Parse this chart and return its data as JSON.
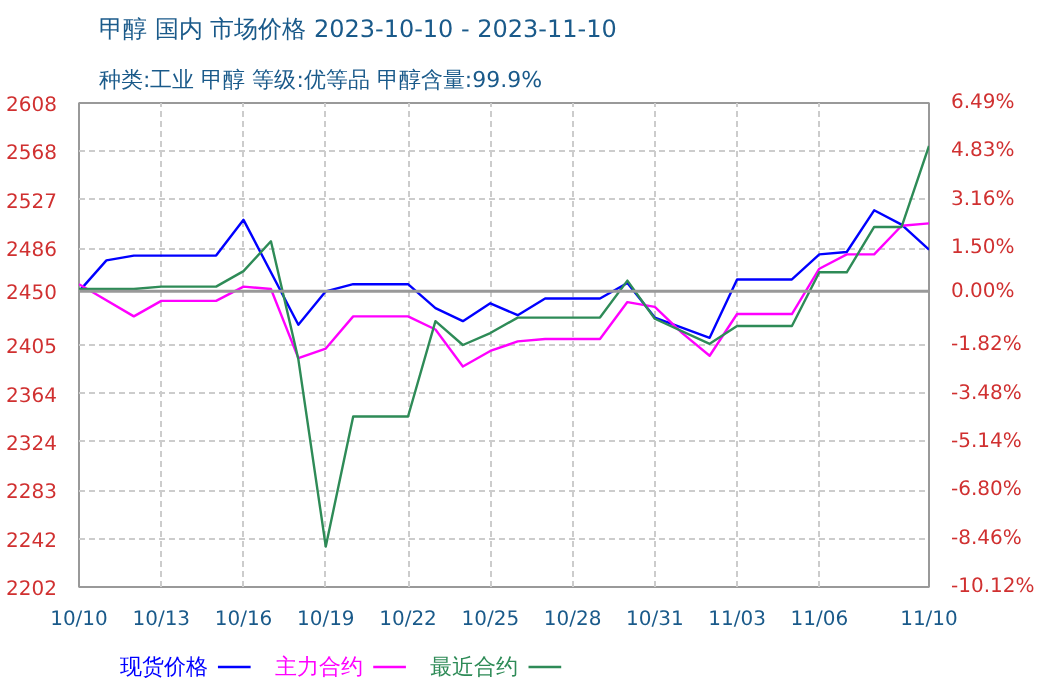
{
  "chart_data": {
    "type": "line",
    "title": "甲醇 国内 市场价格 2023-10-10 - 2023-11-10",
    "subtitle": "种类:工业 甲醇 等级:优等品 甲醇含量:99.9%",
    "xlim": [
      "2023-10-10",
      "2023-11-10"
    ],
    "xticks": [
      {
        "value": "2023-10-10",
        "label": "10/10"
      },
      {
        "value": "2023-10-13",
        "label": "10/13"
      },
      {
        "value": "2023-10-16",
        "label": "10/16"
      },
      {
        "value": "2023-10-19",
        "label": "10/19"
      },
      {
        "value": "2023-10-22",
        "label": "10/22"
      },
      {
        "value": "2023-10-25",
        "label": "10/25"
      },
      {
        "value": "2023-10-28",
        "label": "10/28"
      },
      {
        "value": "2023-10-31",
        "label": "10/31"
      },
      {
        "value": "2023-11-03",
        "label": "11/03"
      },
      {
        "value": "2023-11-06",
        "label": "11/06"
      },
      {
        "value": "2023-11-10",
        "label": "11/10"
      }
    ],
    "ylim": [
      2202,
      2608
    ],
    "yticks": [
      2202,
      2242,
      2283,
      2324,
      2364,
      2405,
      2450,
      2486,
      2527,
      2568,
      2608
    ],
    "y2lim": [
      -10.12,
      6.49
    ],
    "y2ticks": [
      {
        "value": -10.12,
        "label": "-10.12%"
      },
      {
        "value": -8.46,
        "label": "-8.46%"
      },
      {
        "value": -6.8,
        "label": "-6.80%"
      },
      {
        "value": -5.14,
        "label": "-5.14%"
      },
      {
        "value": -3.48,
        "label": "-3.48%"
      },
      {
        "value": -1.82,
        "label": "-1.82%"
      },
      {
        "value": 0,
        "label": "0.00%"
      },
      {
        "value": 1.5,
        "label": "1.50%"
      },
      {
        "value": 3.16,
        "label": "3.16%"
      },
      {
        "value": 4.83,
        "label": "4.83%"
      },
      {
        "value": 6.49,
        "label": "6.49%"
      }
    ],
    "ref_lines": [
      {
        "axis": "y",
        "value": 2450,
        "color": "#999999",
        "line_style": "solid"
      }
    ],
    "grid": true,
    "legend": "bottom",
    "marker": "none",
    "line_style": "solid",
    "series": [
      {
        "name": "现货价格",
        "color": "#0000ff",
        "x": [
          "2023-10-10",
          "2023-10-11",
          "2023-10-12",
          "2023-10-15",
          "2023-10-16",
          "2023-10-18",
          "2023-10-19",
          "2023-10-20",
          "2023-10-22",
          "2023-10-23",
          "2023-10-24",
          "2023-10-25",
          "2023-10-26",
          "2023-10-27",
          "2023-10-29",
          "2023-10-30",
          "2023-10-31",
          "2023-11-02",
          "2023-11-03",
          "2023-11-05",
          "2023-11-06",
          "2023-11-07",
          "2023-11-08",
          "2023-11-09",
          "2023-11-10"
        ],
        "values": [
          2450,
          2476,
          2480,
          2480,
          2510,
          2422,
          2450,
          2456,
          2456,
          2436,
          2425,
          2440,
          2430,
          2444,
          2444,
          2457,
          2428,
          2411,
          2460,
          2460,
          2481,
          2483,
          2518,
          2506,
          2485
        ]
      },
      {
        "name": "主力合约",
        "color": "#ff00ff",
        "x": [
          "2023-10-10",
          "2023-10-12",
          "2023-10-13",
          "2023-10-15",
          "2023-10-16",
          "2023-10-17",
          "2023-10-18",
          "2023-10-19",
          "2023-10-20",
          "2023-10-22",
          "2023-10-23",
          "2023-10-24",
          "2023-10-25",
          "2023-10-26",
          "2023-10-27",
          "2023-10-29",
          "2023-10-30",
          "2023-10-31",
          "2023-11-01",
          "2023-11-02",
          "2023-11-03",
          "2023-11-05",
          "2023-11-06",
          "2023-11-07",
          "2023-11-08",
          "2023-11-09",
          "2023-11-10"
        ],
        "values": [
          2456,
          2429,
          2442,
          2442,
          2454,
          2452,
          2394,
          2402,
          2429,
          2429,
          2418,
          2387,
          2400,
          2408,
          2410,
          2410,
          2441,
          2437,
          2415,
          2396,
          2431,
          2431,
          2469,
          2481,
          2481,
          2505,
          2507
        ]
      },
      {
        "name": "最近合约",
        "color": "#2e8b57",
        "x": [
          "2023-10-10",
          "2023-10-12",
          "2023-10-13",
          "2023-10-15",
          "2023-10-16",
          "2023-10-17",
          "2023-10-18",
          "2023-10-19",
          "2023-10-20",
          "2023-10-22",
          "2023-10-23",
          "2023-10-24",
          "2023-10-25",
          "2023-10-26",
          "2023-10-29",
          "2023-10-30",
          "2023-10-31",
          "2023-11-02",
          "2023-11-03",
          "2023-11-05",
          "2023-11-06",
          "2023-11-07",
          "2023-11-08",
          "2023-11-09",
          "2023-11-10"
        ],
        "values": [
          2452,
          2452,
          2454,
          2454,
          2467,
          2492,
          2393,
          2236,
          2345,
          2345,
          2425,
          2405,
          2415,
          2428,
          2428,
          2459,
          2427,
          2406,
          2421,
          2421,
          2466,
          2466,
          2504,
          2504,
          2572
        ]
      }
    ]
  }
}
